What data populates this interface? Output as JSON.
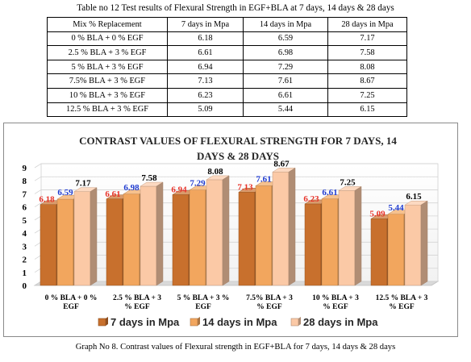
{
  "table": {
    "caption": "Table no 12 Test results of Flexural Strength in EGF+BLA at 7 days, 14 days & 28 days",
    "headers": [
      "Mix % Replacement",
      "7 days in Mpa",
      "14 days in Mpa",
      "28 days in Mpa"
    ],
    "rows": [
      [
        "0 % BLA + 0 % EGF",
        "6.18",
        "6.59",
        "7.17"
      ],
      [
        "2.5 % BLA + 3 % EGF",
        "6.61",
        "6.98",
        "7.58"
      ],
      [
        "5 % BLA + 3 % EGF",
        "6.94",
        "7.29",
        "8.08"
      ],
      [
        "7.5% BLA + 3 % EGF",
        "7.13",
        "7.61",
        "8.67"
      ],
      [
        "10 % BLA + 3 % EGF",
        "6.23",
        "6.61",
        "7.25"
      ],
      [
        "12.5 % BLA + 3 % EGF",
        "5.09",
        "5.44",
        "6.15"
      ]
    ]
  },
  "graph_caption": "Graph No 8.  Contrast values of Flexural strength in EGF+BLA for 7 days, 14 days & 28 days",
  "chart_data": {
    "type": "bar",
    "title": "CONTRAST VALUES OF FLEXURAL STRENGTH FOR 7 DAYS, 14 DAYS & 28 DAYS",
    "title_lines": [
      "CONTRAST VALUES OF FLEXURAL STRENGTH FOR 7 DAYS, 14",
      "DAYS & 28 DAYS"
    ],
    "categories": [
      "0 % BLA + 0 % EGF",
      "2.5 % BLA + 3 % EGF",
      "5 % BLA + 3 % EGF",
      "7.5% BLA + 3 % EGF",
      "10 % BLA + 3 % EGF",
      "12.5 % BLA + 3 % EGF"
    ],
    "category_lines": [
      [
        "0 % BLA + 0 %",
        "EGF"
      ],
      [
        "2.5 % BLA + 3",
        "% EGF"
      ],
      [
        "5 % BLA + 3 %",
        "EGF"
      ],
      [
        "7.5% BLA + 3",
        "% EGF"
      ],
      [
        "10 % BLA + 3",
        "% EGF"
      ],
      [
        "12.5 % BLA + 3",
        "% EGF"
      ]
    ],
    "series": [
      {
        "name": "7 days in Mpa",
        "values": [
          6.18,
          6.61,
          6.94,
          7.13,
          6.23,
          5.09
        ],
        "color": "#c8702d",
        "label_color": "#e8332a"
      },
      {
        "name": "14 days in Mpa",
        "values": [
          6.59,
          6.98,
          7.29,
          7.61,
          6.61,
          5.44
        ],
        "color": "#f2a65e",
        "label_color": "#1f3bd0"
      },
      {
        "name": "28 days in Mpa",
        "values": [
          7.17,
          7.58,
          8.08,
          8.67,
          7.25,
          6.15
        ],
        "color": "#fbc9a6",
        "label_color": "#000000"
      }
    ],
    "ylim": [
      0,
      9
    ],
    "yticks": [
      0,
      1,
      2,
      3,
      4,
      5,
      6,
      7,
      8,
      9
    ],
    "xlabel": "",
    "ylabel": "",
    "grid": true,
    "legend_position": "bottom",
    "style": "3d-bars"
  }
}
